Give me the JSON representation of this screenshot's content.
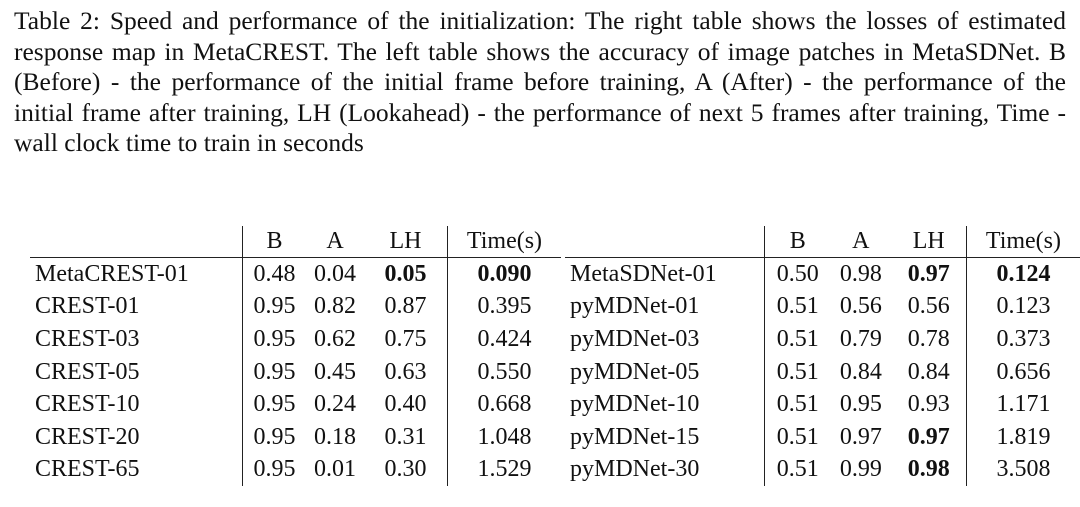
{
  "caption": "Table 2: Speed and performance of the initialization: The right table shows the losses of estimated response map in MetaCREST. The left table shows the accuracy of image patches in MetaSDNet. B (Before) - the performance of the initial frame before training, A (After) - the performance of the initial frame after training, LH (Lookahead) - the performance of next 5 frames after training, Time - wall clock time to train in seconds",
  "tables": [
    {
      "header": [
        "B",
        "A",
        "LH",
        "Time(s)"
      ],
      "rows": [
        [
          "MetaCREST-01",
          "0.48",
          "0.04",
          {
            "text": "0.05",
            "bold": true
          },
          {
            "text": "0.090",
            "bold": true
          }
        ],
        [
          "CREST-01",
          "0.95",
          "0.82",
          "0.87",
          "0.395"
        ],
        [
          "CREST-03",
          "0.95",
          "0.62",
          "0.75",
          "0.424"
        ],
        [
          "CREST-05",
          "0.95",
          "0.45",
          "0.63",
          "0.550"
        ],
        [
          "CREST-10",
          "0.95",
          "0.24",
          "0.40",
          "0.668"
        ],
        [
          "CREST-20",
          "0.95",
          "0.18",
          "0.31",
          "1.048"
        ],
        [
          "CREST-65",
          "0.95",
          "0.01",
          "0.30",
          "1.529"
        ]
      ]
    },
    {
      "header": [
        "B",
        "A",
        "LH",
        "Time(s)"
      ],
      "rows": [
        [
          "MetaSDNet-01",
          "0.50",
          "0.98",
          {
            "text": "0.97",
            "bold": true
          },
          {
            "text": "0.124",
            "bold": true
          }
        ],
        [
          "pyMDNet-01",
          "0.51",
          "0.56",
          "0.56",
          "0.123"
        ],
        [
          "pyMDNet-03",
          "0.51",
          "0.79",
          "0.78",
          "0.373"
        ],
        [
          "pyMDNet-05",
          "0.51",
          "0.84",
          "0.84",
          "0.656"
        ],
        [
          "pyMDNet-10",
          "0.51",
          "0.95",
          "0.93",
          "1.171"
        ],
        [
          "pyMDNet-15",
          "0.51",
          "0.97",
          {
            "text": "0.97",
            "bold": true
          },
          "1.819"
        ],
        [
          "pyMDNet-30",
          "0.51",
          "0.99",
          {
            "text": "0.98",
            "bold": true
          },
          "3.508"
        ]
      ]
    }
  ]
}
